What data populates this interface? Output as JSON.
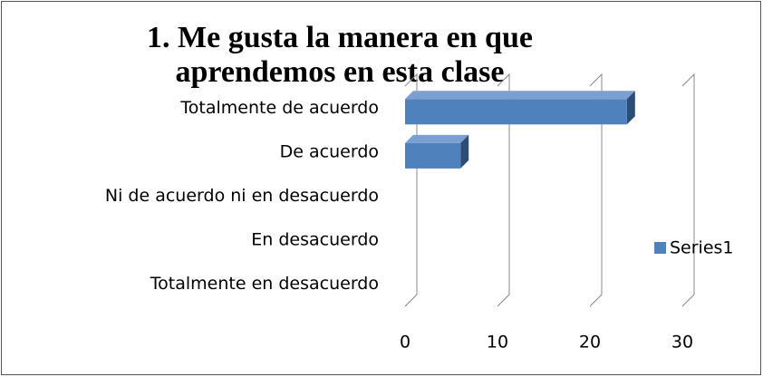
{
  "chart_data": {
    "type": "bar",
    "orientation": "horizontal",
    "title": [
      "1. Me gusta la manera en que",
      "aprendemos en esta clase"
    ],
    "categories": [
      "Totalmente de acuerdo",
      "De acuerdo",
      "Ni de acuerdo ni en desacuerdo",
      "En desacuerdo",
      "Totalmente en desacuerdo"
    ],
    "series": [
      {
        "name": "Series1",
        "color": "#4f81bd",
        "values": [
          24,
          6,
          0,
          0,
          0
        ]
      }
    ],
    "xlim": [
      0,
      30
    ],
    "xticks": [
      0,
      10,
      20,
      30
    ],
    "grid": true,
    "legend": "right"
  }
}
